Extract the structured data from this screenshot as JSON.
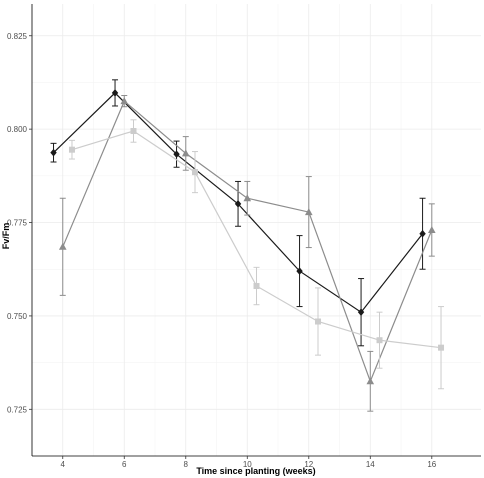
{
  "chart_data": {
    "type": "line",
    "title": "",
    "xlabel": "Time since planting (weeks)",
    "ylabel": "Fv/Fm",
    "xlim": [
      3,
      17.6
    ],
    "ylim": [
      0.7125,
      0.8335
    ],
    "x_ticks": [
      4,
      6,
      8,
      10,
      12,
      14,
      16
    ],
    "x_tick_labels": [
      "4",
      "6",
      "8",
      "10",
      "12",
      "14",
      "16"
    ],
    "y_ticks": [
      0.725,
      0.75,
      0.775,
      0.8,
      0.825
    ],
    "y_tick_labels": [
      "0.725",
      "0.750",
      "0.775",
      "0.800",
      "0.825"
    ],
    "grid": true,
    "legend": "none",
    "series": [
      {
        "marker": "diamond",
        "color": "#1a1a1a",
        "x": [
          3.7,
          5.7,
          7.7,
          9.7,
          11.7,
          13.7,
          15.7
        ],
        "y": [
          0.7937,
          0.8097,
          0.7933,
          0.78,
          0.762,
          0.751,
          0.772
        ],
        "err": [
          0.0025,
          0.0035,
          0.0035,
          0.006,
          0.0095,
          0.009,
          0.0095
        ]
      },
      {
        "marker": "triangle",
        "color": "#8c8c8c",
        "x": [
          4.0,
          6.0,
          8.0,
          10.0,
          12.0,
          14.0,
          16.0
        ],
        "y": [
          0.7685,
          0.8075,
          0.7935,
          0.7815,
          0.7778,
          0.7325,
          0.773
        ],
        "err": [
          0.013,
          0.0015,
          0.0045,
          0.0045,
          0.0095,
          0.008,
          0.007
        ]
      },
      {
        "marker": "square",
        "color": "#cccccc",
        "x": [
          4.3,
          6.3,
          8.3,
          10.3,
          12.3,
          14.3,
          16.3
        ],
        "y": [
          0.7945,
          0.7995,
          0.7885,
          0.758,
          0.7485,
          0.7435,
          0.7415
        ],
        "err": [
          0.0025,
          0.003,
          0.0055,
          0.005,
          0.009,
          0.0075,
          0.011
        ]
      }
    ]
  }
}
